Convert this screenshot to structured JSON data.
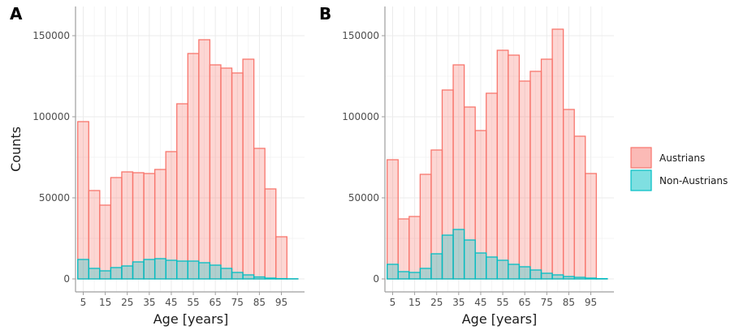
{
  "colors": {
    "austrians_fill": "#f8766d",
    "austrians_line": "#f8766d",
    "non_austrians_fill": "#00bfc4",
    "non_austrians_line": "#00bfc4",
    "grid": "#ebebeb",
    "axis": "#9e9e9e"
  },
  "legend": {
    "items": [
      "Austrians",
      "Non-Austrians"
    ]
  },
  "chart_data": [
    {
      "panel": "A",
      "type": "bar",
      "stacked": false,
      "bin_width": 5,
      "categories": [
        5,
        10,
        15,
        20,
        25,
        30,
        35,
        40,
        45,
        50,
        55,
        60,
        65,
        70,
        75,
        80,
        85,
        90,
        95,
        100
      ],
      "x_ticks": [
        "5",
        "15",
        "25",
        "35",
        "45",
        "55",
        "65",
        "75",
        "85",
        "95"
      ],
      "y_ticks": [
        "0",
        "50000",
        "100000",
        "150000"
      ],
      "xlabel": "Age [years]",
      "ylabel": "Counts",
      "ylim": [
        -8000,
        168000
      ],
      "xlim": [
        1.5,
        105.5
      ],
      "grid": true,
      "series": [
        {
          "name": "Austrians",
          "values": [
            97000,
            54500,
            45500,
            62500,
            66000,
            65500,
            65000,
            67500,
            78500,
            108000,
            139000,
            147500,
            132000,
            130000,
            127000,
            135500,
            80500,
            55500,
            26000,
            0
          ]
        },
        {
          "name": "Non-Austrians",
          "values": [
            12000,
            6500,
            5000,
            7000,
            8000,
            10500,
            12000,
            12500,
            11500,
            11000,
            11000,
            10000,
            8500,
            6500,
            4000,
            2500,
            1200,
            500,
            200,
            100
          ]
        }
      ]
    },
    {
      "panel": "B",
      "type": "bar",
      "stacked": false,
      "bin_width": 5,
      "categories": [
        5,
        10,
        15,
        20,
        25,
        30,
        35,
        40,
        45,
        50,
        55,
        60,
        65,
        70,
        75,
        80,
        85,
        90,
        95,
        100
      ],
      "x_ticks": [
        "5",
        "15",
        "25",
        "35",
        "45",
        "55",
        "65",
        "75",
        "85",
        "95"
      ],
      "y_ticks": [
        "0",
        "50000",
        "100000",
        "150000"
      ],
      "xlabel": "Age [years]",
      "ylabel": "",
      "ylim": [
        -8000,
        168000
      ],
      "xlim": [
        1.5,
        105.5
      ],
      "grid": true,
      "series": [
        {
          "name": "Austrians",
          "values": [
            73500,
            37000,
            38500,
            64500,
            79500,
            116500,
            132000,
            106000,
            91500,
            114500,
            141000,
            138000,
            122000,
            128000,
            135500,
            154000,
            104500,
            88000,
            65000,
            0
          ]
        },
        {
          "name": "Non-Austrians",
          "values": [
            9000,
            4500,
            4000,
            6500,
            15500,
            27000,
            30500,
            24000,
            16000,
            13500,
            11500,
            9000,
            7500,
            5500,
            3500,
            2500,
            1500,
            1000,
            500,
            200
          ]
        }
      ]
    }
  ]
}
